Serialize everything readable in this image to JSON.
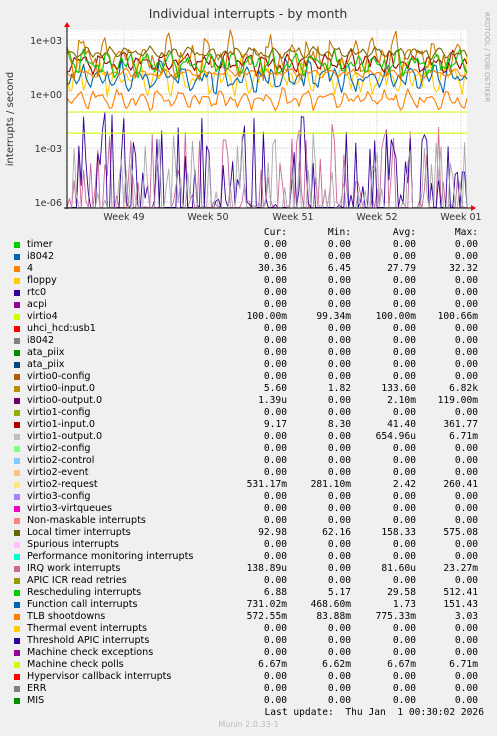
{
  "chart_data": {
    "type": "line",
    "title": "Individual interrupts - by month",
    "ylabel": "interrupts / second",
    "watermark": "RRDTOOL / TOBI OETIKER",
    "y_scale": "log",
    "y_ticks": [
      "1e+03",
      "1e+00",
      "1e-03",
      "1e-06"
    ],
    "y_tick_values": [
      1000,
      1,
      0.001,
      1e-06
    ],
    "x_ticks": [
      "Week 49",
      "Week 50",
      "Week 51",
      "Week 52",
      "Week 01"
    ],
    "grid": true,
    "series_summary": [
      {
        "name": "Local timer interrupts",
        "color": "#806600",
        "min": 62.16,
        "max": 575.08
      },
      {
        "name": "Rescheduling interrupts",
        "color": "#00cc00",
        "min": 5.17,
        "max": 512.41
      },
      {
        "name": "virtio0-input.0",
        "color": "#cc7a00",
        "min": 1.82,
        "max": 6820
      },
      {
        "name": "4",
        "color": "#ff8000",
        "min": 6.45,
        "max": 32.32
      },
      {
        "name": "virtio1-input.0",
        "color": "#990000",
        "min": 8.3,
        "max": 361.77
      },
      {
        "name": "Function call interrupts",
        "color": "#0066b3",
        "min": 0.4686,
        "max": 151.43
      },
      {
        "name": "TLB shootdowns",
        "color": "#ff8000",
        "min": 0.08388,
        "max": 3.03
      },
      {
        "name": "virtio2-request",
        "color": "#ffcc00",
        "min": 0.2811,
        "max": 260.41
      },
      {
        "name": "virtio4",
        "color": "#ccff00",
        "min": 0.09934,
        "max": 0.10066
      },
      {
        "name": "Machine check polls",
        "color": "#ccff00",
        "min": 0.00662,
        "max": 0.00671
      },
      {
        "name": "virtio0-output.0",
        "color": "#330099",
        "min": 0,
        "max": 0.119
      },
      {
        "name": "virtio1-output.0",
        "color": "#aaaaaa",
        "min": 0,
        "max": 0.00671
      },
      {
        "name": "IRQ work interrupts",
        "color": "#cc6699",
        "min": 0,
        "max": 0.02327
      }
    ]
  },
  "legend": {
    "headers": [
      "Cur:",
      "Min:",
      "Avg:",
      "Max:"
    ],
    "rows": [
      {
        "label": "timer",
        "color": "#00cc00",
        "cur": "0.00",
        "min": "0.00",
        "avg": "0.00",
        "max": "0.00"
      },
      {
        "label": "i8042",
        "color": "#0066b3",
        "cur": "0.00",
        "min": "0.00",
        "avg": "0.00",
        "max": "0.00"
      },
      {
        "label": "4",
        "color": "#ff8000",
        "cur": "30.36",
        "min": "6.45",
        "avg": "27.79",
        "max": "32.32"
      },
      {
        "label": "floppy",
        "color": "#ffcc00",
        "cur": "0.00",
        "min": "0.00",
        "avg": "0.00",
        "max": "0.00"
      },
      {
        "label": "rtc0",
        "color": "#330099",
        "cur": "0.00",
        "min": "0.00",
        "avg": "0.00",
        "max": "0.00"
      },
      {
        "label": "acpi",
        "color": "#990099",
        "cur": "0.00",
        "min": "0.00",
        "avg": "0.00",
        "max": "0.00"
      },
      {
        "label": "virtio4",
        "color": "#ccff00",
        "cur": "100.00m",
        "min": "99.34m",
        "avg": "100.00m",
        "max": "100.66m"
      },
      {
        "label": "uhci_hcd:usb1",
        "color": "#ff0000",
        "cur": "0.00",
        "min": "0.00",
        "avg": "0.00",
        "max": "0.00"
      },
      {
        "label": "i8042",
        "color": "#808080",
        "cur": "0.00",
        "min": "0.00",
        "avg": "0.00",
        "max": "0.00"
      },
      {
        "label": "ata_piix",
        "color": "#008f00",
        "cur": "0.00",
        "min": "0.00",
        "avg": "0.00",
        "max": "0.00"
      },
      {
        "label": "ata_piix",
        "color": "#00487d",
        "cur": "0.00",
        "min": "0.00",
        "avg": "0.00",
        "max": "0.00"
      },
      {
        "label": "virtio0-config",
        "color": "#b35a00",
        "cur": "0.00",
        "min": "0.00",
        "avg": "0.00",
        "max": "0.00"
      },
      {
        "label": "virtio0-input.0",
        "color": "#b38f00",
        "cur": "5.60",
        "min": "1.82",
        "avg": "133.60",
        "max": "6.82k"
      },
      {
        "label": "virtio0-output.0",
        "color": "#6b006b",
        "cur": "1.39u",
        "min": "0.00",
        "avg": "2.10m",
        "max": "119.00m"
      },
      {
        "label": "virtio1-config",
        "color": "#8fb300",
        "cur": "0.00",
        "min": "0.00",
        "avg": "0.00",
        "max": "0.00"
      },
      {
        "label": "virtio1-input.0",
        "color": "#b30000",
        "cur": "9.17",
        "min": "8.30",
        "avg": "41.40",
        "max": "361.77"
      },
      {
        "label": "virtio1-output.0",
        "color": "#bebebe",
        "cur": "0.00",
        "min": "0.00",
        "avg": "654.96u",
        "max": "6.71m"
      },
      {
        "label": "virtio2-config",
        "color": "#80ff80",
        "cur": "0.00",
        "min": "0.00",
        "avg": "0.00",
        "max": "0.00"
      },
      {
        "label": "virtio2-control",
        "color": "#80c9ff",
        "cur": "0.00",
        "min": "0.00",
        "avg": "0.00",
        "max": "0.00"
      },
      {
        "label": "virtio2-event",
        "color": "#ffc080",
        "cur": "0.00",
        "min": "0.00",
        "avg": "0.00",
        "max": "0.00"
      },
      {
        "label": "virtio2-request",
        "color": "#ffe680",
        "cur": "531.17m",
        "min": "281.10m",
        "avg": "2.42",
        "max": "260.41"
      },
      {
        "label": "virtio3-config",
        "color": "#aa80ff",
        "cur": "0.00",
        "min": "0.00",
        "avg": "0.00",
        "max": "0.00"
      },
      {
        "label": "virtio3-virtqueues",
        "color": "#ee00cc",
        "cur": "0.00",
        "min": "0.00",
        "avg": "0.00",
        "max": "0.00"
      },
      {
        "label": "Non-maskable interrupts",
        "color": "#ff8080",
        "cur": "0.00",
        "min": "0.00",
        "avg": "0.00",
        "max": "0.00"
      },
      {
        "label": "Local timer interrupts",
        "color": "#666600",
        "cur": "92.98",
        "min": "62.16",
        "avg": "158.33",
        "max": "575.08"
      },
      {
        "label": "Spurious interrupts",
        "color": "#ffbfff",
        "cur": "0.00",
        "min": "0.00",
        "avg": "0.00",
        "max": "0.00"
      },
      {
        "label": "Performance monitoring interrupts",
        "color": "#00ffcc",
        "cur": "0.00",
        "min": "0.00",
        "avg": "0.00",
        "max": "0.00"
      },
      {
        "label": "IRQ work interrupts",
        "color": "#cc6699",
        "cur": "138.89u",
        "min": "0.00",
        "avg": "81.60u",
        "max": "23.27m"
      },
      {
        "label": "APIC ICR read retries",
        "color": "#999900",
        "cur": "0.00",
        "min": "0.00",
        "avg": "0.00",
        "max": "0.00"
      },
      {
        "label": "Rescheduling interrupts",
        "color": "#00cc00",
        "cur": "6.88",
        "min": "5.17",
        "avg": "29.58",
        "max": "512.41"
      },
      {
        "label": "Function call interrupts",
        "color": "#0066b3",
        "cur": "731.02m",
        "min": "468.60m",
        "avg": "1.73",
        "max": "151.43"
      },
      {
        "label": "TLB shootdowns",
        "color": "#ff8000",
        "cur": "572.55m",
        "min": "83.88m",
        "avg": "775.33m",
        "max": "3.03"
      },
      {
        "label": "Thermal event interrupts",
        "color": "#ffcc00",
        "cur": "0.00",
        "min": "0.00",
        "avg": "0.00",
        "max": "0.00"
      },
      {
        "label": "Threshold APIC interrupts",
        "color": "#330099",
        "cur": "0.00",
        "min": "0.00",
        "avg": "0.00",
        "max": "0.00"
      },
      {
        "label": "Machine check exceptions",
        "color": "#990099",
        "cur": "0.00",
        "min": "0.00",
        "avg": "0.00",
        "max": "0.00"
      },
      {
        "label": "Machine check polls",
        "color": "#ccff00",
        "cur": "6.67m",
        "min": "6.62m",
        "avg": "6.67m",
        "max": "6.71m"
      },
      {
        "label": "Hypervisor callback interrupts",
        "color": "#ff0000",
        "cur": "0.00",
        "min": "0.00",
        "avg": "0.00",
        "max": "0.00"
      },
      {
        "label": "ERR",
        "color": "#808080",
        "cur": "0.00",
        "min": "0.00",
        "avg": "0.00",
        "max": "0.00"
      },
      {
        "label": "MIS",
        "color": "#008f00",
        "cur": "0.00",
        "min": "0.00",
        "avg": "0.00",
        "max": "0.00"
      }
    ],
    "last_update": "Last update:  Thu Jan  1 00:30:02 2026"
  },
  "footer": {
    "version": "Munin 2.0.33-1"
  }
}
